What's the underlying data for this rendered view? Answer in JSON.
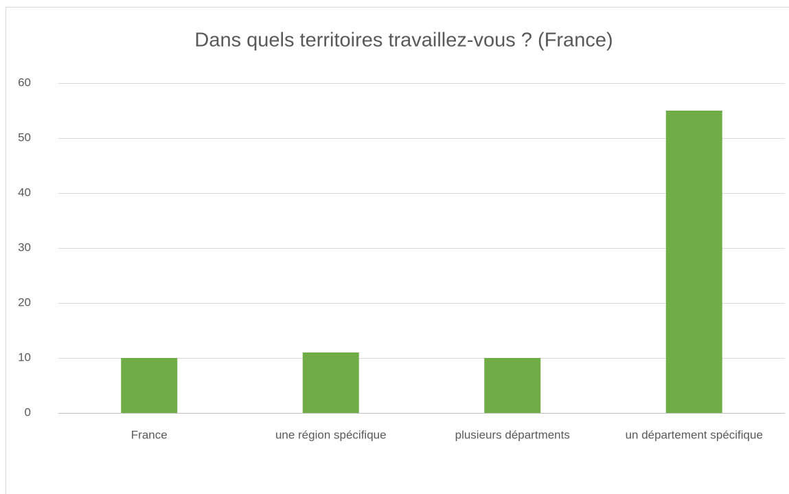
{
  "chart_data": {
    "type": "bar",
    "title": "Dans quels territoires travaillez-vous ? (France)",
    "categories": [
      "France",
      "une région spécifique",
      "plusieurs départments",
      "un département spécifique"
    ],
    "values": [
      10,
      11,
      10,
      55
    ],
    "color": "#70ad47",
    "ylim": [
      0,
      60
    ],
    "yticks": [
      0,
      10,
      20,
      30,
      40,
      50,
      60
    ],
    "grid": true
  }
}
